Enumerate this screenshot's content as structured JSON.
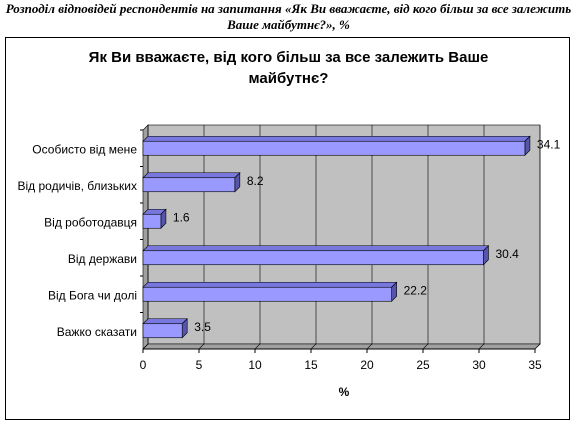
{
  "chart_data": {
    "type": "bar",
    "orientation": "horizontal",
    "caption": "Розподіл відповідей респондентів на запитання «Як Ви вважаєте, від кого більш за все залежить Ваше майбутнє?», %",
    "title": "Як Ви вважаєте, від кого більш за все залежить Ваше майбутнє?",
    "categories": [
      "Особисто від мене",
      "Від родичів, близьких",
      "Від роботодавця",
      "Від держави",
      "Від Бога чи долі",
      "Важко сказати"
    ],
    "values": [
      34.1,
      8.2,
      1.6,
      30.4,
      22.2,
      3.5
    ],
    "color": "#9999ff",
    "xlabel": "%",
    "xlim": [
      0,
      35
    ],
    "xticks": [
      0,
      5,
      10,
      15,
      20,
      25,
      30,
      35
    ],
    "grid": true
  }
}
